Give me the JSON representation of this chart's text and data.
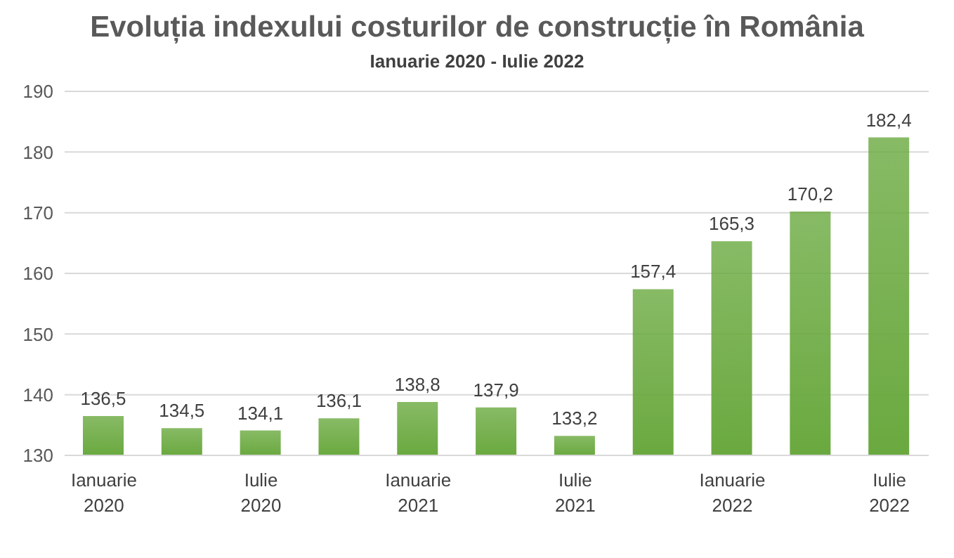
{
  "chart_data": {
    "type": "bar",
    "title": "Evoluția indexului costurilor de construcție în România",
    "subtitle": "Ianuarie 2020 - Iulie 2022",
    "categories": [
      "Ianuarie 2020",
      null,
      "Iulie 2020",
      null,
      "Ianuarie 2021",
      null,
      "Iulie 2021",
      null,
      "Ianuarie 2022",
      null,
      "Iulie 2022"
    ],
    "values": [
      136.5,
      134.5,
      134.1,
      136.1,
      138.8,
      137.9,
      133.2,
      157.4,
      165.3,
      170.2,
      182.4
    ],
    "color": "#6aa93f",
    "ylim": [
      130,
      190
    ],
    "yticks": [
      130,
      140,
      150,
      160,
      170,
      180,
      190
    ],
    "grid": "y",
    "value_labels": [
      "136,5",
      "134,5",
      "134,1",
      "136,1",
      "138,8",
      "137,9",
      "133,2",
      "157,4",
      "165,3",
      "170,2",
      "182,4"
    ]
  }
}
